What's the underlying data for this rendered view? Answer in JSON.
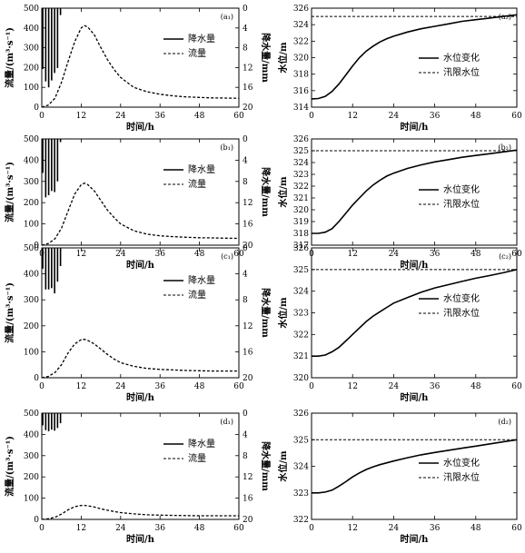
{
  "chart_data": [
    {
      "type": "line",
      "panel_label": "(a₁)",
      "xlabel": "时间/h",
      "ylabel": "流量/(m³·s⁻¹)",
      "y2label": "降水量/mm",
      "xlim": [
        0,
        60
      ],
      "ylim": [
        0,
        500
      ],
      "y2lim": [
        0,
        20
      ],
      "y2_inverted": true,
      "xticks": [
        "0",
        "12",
        "24",
        "36",
        "48",
        "60"
      ],
      "yticks": [
        "0",
        "100",
        "200",
        "300",
        "400",
        "500"
      ],
      "y2ticks": [
        "0",
        "4",
        "8",
        "12",
        "16",
        "20"
      ],
      "legend": [
        "降水量",
        "流量"
      ],
      "legend_position": "top-right",
      "rainfall": {
        "name": "降水量",
        "x": [
          0.3,
          1.2,
          2.1,
          3.0,
          3.9,
          4.8,
          5.7
        ],
        "values": [
          12.3,
          14.8,
          16.0,
          14.6,
          13.1,
          12.1,
          1.4
        ]
      },
      "series": [
        {
          "name": "流量",
          "x": [
            0,
            2,
            4,
            6,
            8,
            10,
            12,
            13,
            14,
            16,
            18,
            20,
            22,
            24,
            28,
            32,
            36,
            40,
            44,
            48,
            52,
            56,
            60
          ],
          "values": [
            0,
            10,
            45,
            125,
            230,
            330,
            400,
            412,
            405,
            365,
            300,
            240,
            190,
            150,
            100,
            78,
            65,
            57,
            52,
            49,
            47,
            46,
            45
          ]
        }
      ]
    },
    {
      "type": "line",
      "panel_label": "(a₂)",
      "xlabel": "时间/h",
      "ylabel": "水位/m",
      "xlim": [
        0,
        60
      ],
      "ylim": [
        314,
        326
      ],
      "xticks": [
        "0",
        "12",
        "24",
        "36",
        "48",
        "60"
      ],
      "yticks": [
        "314",
        "316",
        "318",
        "320",
        "322",
        "324",
        "326"
      ],
      "legend": [
        "水位变化",
        "汛限水位"
      ],
      "legend_position": "center-right",
      "flood_limit": 325,
      "series": [
        {
          "name": "水位变化",
          "x": [
            0,
            2,
            4,
            6,
            8,
            10,
            12,
            14,
            16,
            18,
            20,
            22,
            24,
            28,
            32,
            36,
            40,
            44,
            48,
            52,
            56,
            60
          ],
          "values": [
            315,
            315.05,
            315.3,
            315.9,
            316.8,
            317.9,
            319.0,
            320.0,
            320.8,
            321.4,
            321.9,
            322.3,
            322.6,
            323.1,
            323.5,
            323.8,
            324.1,
            324.4,
            324.6,
            324.8,
            325.0,
            325.2
          ]
        }
      ]
    },
    {
      "type": "line",
      "panel_label": "(b₁)",
      "xlabel": "时间/h",
      "ylabel": "流量/(m³·s⁻¹)",
      "y2label": "降水量/mm",
      "xlim": [
        0,
        60
      ],
      "ylim": [
        0,
        500
      ],
      "y2lim": [
        0,
        20
      ],
      "y2_inverted": true,
      "xticks": [
        "0",
        "12",
        "24",
        "36",
        "48",
        "60"
      ],
      "yticks": [
        "0",
        "100",
        "200",
        "300",
        "400",
        "500"
      ],
      "y2ticks": [
        "0",
        "4",
        "8",
        "12",
        "16",
        "20"
      ],
      "legend": [
        "降水量",
        "流量"
      ],
      "legend_position": "top-right",
      "rainfall": {
        "name": "降水量",
        "x": [
          0.3,
          1.2,
          2.1,
          3.0,
          3.9,
          4.8,
          5.7
        ],
        "values": [
          6.4,
          11.0,
          10.6,
          9.8,
          10.0,
          8.0,
          0.6
        ]
      },
      "series": [
        {
          "name": "流量",
          "x": [
            0,
            2,
            4,
            6,
            8,
            10,
            12,
            13,
            14,
            16,
            18,
            20,
            22,
            24,
            28,
            32,
            36,
            40,
            44,
            48,
            52,
            56,
            60
          ],
          "values": [
            0,
            8,
            30,
            80,
            160,
            240,
            285,
            292,
            285,
            255,
            210,
            165,
            130,
            100,
            68,
            52,
            44,
            40,
            37,
            35,
            34,
            33,
            32
          ]
        }
      ]
    },
    {
      "type": "line",
      "panel_label": "(b₂)",
      "xlabel": "时间/h",
      "ylabel": "水位/m",
      "xlim": [
        0,
        60
      ],
      "ylim": [
        317,
        326
      ],
      "xticks": [
        "0",
        "12",
        "24",
        "36",
        "48",
        "60"
      ],
      "yticks": [
        "317",
        "318",
        "319",
        "320",
        "321",
        "322",
        "323",
        "324",
        "325",
        "326"
      ],
      "legend": [
        "水位变化",
        "汛限水位"
      ],
      "legend_position": "bottom-right",
      "flood_limit": 325,
      "series": [
        {
          "name": "水位变化",
          "x": [
            0,
            2,
            4,
            6,
            8,
            10,
            12,
            14,
            16,
            18,
            20,
            22,
            24,
            28,
            32,
            36,
            40,
            44,
            48,
            52,
            56,
            60
          ],
          "values": [
            318,
            318,
            318.1,
            318.4,
            319.0,
            319.7,
            320.4,
            321.0,
            321.6,
            322.1,
            322.5,
            322.85,
            323.1,
            323.5,
            323.8,
            324.05,
            324.25,
            324.45,
            324.6,
            324.75,
            324.9,
            325.05
          ]
        }
      ]
    },
    {
      "type": "line",
      "panel_label": "(c₁)",
      "xlabel": "时间/h",
      "ylabel": "流量/(m³·s⁻¹)",
      "y2label": "降水量/mm",
      "xlim": [
        0,
        60
      ],
      "ylim": [
        0,
        500
      ],
      "y2lim": [
        0,
        20
      ],
      "y2_inverted": true,
      "xticks": [
        "0",
        "12",
        "24",
        "36",
        "48",
        "60"
      ],
      "yticks": [
        "0",
        "100",
        "200",
        "300",
        "400",
        "500"
      ],
      "y2ticks": [
        "0",
        "4",
        "8",
        "12",
        "16",
        "20"
      ],
      "legend": [
        "降水量",
        "流量"
      ],
      "legend_position": "center-right",
      "rainfall": {
        "name": "降水量",
        "x": [
          0.3,
          1.2,
          2.1,
          3.0,
          3.9,
          4.8,
          5.7
        ],
        "values": [
          3.2,
          6.4,
          6.4,
          6.2,
          7.0,
          5.2,
          2.8
        ]
      },
      "series": [
        {
          "name": "流量",
          "x": [
            0,
            2,
            4,
            6,
            8,
            10,
            12,
            13,
            14,
            16,
            18,
            20,
            22,
            24,
            28,
            32,
            36,
            40,
            44,
            48,
            52,
            56,
            60
          ],
          "values": [
            0,
            5,
            20,
            50,
            95,
            130,
            147,
            148,
            144,
            130,
            110,
            90,
            72,
            58,
            44,
            36,
            32,
            30,
            28,
            27,
            26,
            26,
            26
          ]
        }
      ]
    },
    {
      "type": "line",
      "panel_label": "(c₂)",
      "xlabel": "时间/h",
      "ylabel": "水位/m",
      "xlim": [
        0,
        60
      ],
      "ylim": [
        320,
        326
      ],
      "xticks": [
        "0",
        "12",
        "24",
        "36",
        "48",
        "60"
      ],
      "yticks": [
        "320",
        "321",
        "322",
        "323",
        "324",
        "325",
        "326"
      ],
      "legend": [
        "水位变化",
        "汛限水位"
      ],
      "legend_position": "bottom-right",
      "flood_limit": 325,
      "series": [
        {
          "name": "水位变化",
          "x": [
            0,
            2,
            4,
            6,
            8,
            10,
            12,
            14,
            16,
            18,
            20,
            22,
            24,
            28,
            32,
            36,
            40,
            44,
            48,
            52,
            56,
            60
          ],
          "values": [
            321,
            321,
            321.05,
            321.2,
            321.4,
            321.7,
            322.0,
            322.3,
            322.6,
            322.85,
            323.05,
            323.25,
            323.45,
            323.7,
            323.95,
            324.15,
            324.3,
            324.45,
            324.6,
            324.72,
            324.85,
            325.0
          ]
        }
      ]
    },
    {
      "type": "line",
      "panel_label": "(d₁)",
      "xlabel": "时间/h",
      "ylabel": "流量/(m³·s⁻¹)",
      "y2label": "降水量/mm",
      "xlim": [
        0,
        60
      ],
      "ylim": [
        0,
        500
      ],
      "y2lim": [
        0,
        20
      ],
      "y2_inverted": true,
      "xticks": [
        "0",
        "12",
        "24",
        "36",
        "48",
        "60"
      ],
      "yticks": [
        "0",
        "100",
        "200",
        "300",
        "400",
        "500"
      ],
      "y2ticks": [
        "0",
        "4",
        "8",
        "12",
        "16",
        "20"
      ],
      "legend": [
        "降水量",
        "流量"
      ],
      "legend_position": "top-right",
      "rainfall": {
        "name": "降水量",
        "x": [
          0.3,
          1.2,
          2.1,
          3.0,
          3.9,
          4.8,
          5.7
        ],
        "values": [
          2.3,
          3.2,
          3.4,
          3.1,
          3.3,
          2.8,
          1.9
        ]
      },
      "series": [
        {
          "name": "流量",
          "x": [
            0,
            2,
            4,
            6,
            8,
            10,
            12,
            13,
            14,
            16,
            18,
            20,
            22,
            24,
            28,
            32,
            36,
            40,
            44,
            48,
            52,
            56,
            60
          ],
          "values": [
            0,
            3,
            10,
            25,
            45,
            60,
            66,
            66,
            64,
            58,
            50,
            43,
            37,
            32,
            26,
            22,
            20,
            19,
            18,
            17,
            17,
            17,
            17
          ]
        }
      ]
    },
    {
      "type": "line",
      "panel_label": "(d₂)",
      "xlabel": "时间/h",
      "ylabel": "水位/m",
      "xlim": [
        0,
        60
      ],
      "ylim": [
        322,
        326
      ],
      "xticks": [
        "0",
        "12",
        "24",
        "36",
        "48",
        "60"
      ],
      "yticks": [
        "322",
        "323",
        "324",
        "325",
        "326"
      ],
      "legend": [
        "水位变化",
        "汛限水位"
      ],
      "legend_position": "center-right",
      "flood_limit": 325,
      "series": [
        {
          "name": "水位变化",
          "x": [
            0,
            2,
            4,
            6,
            8,
            10,
            12,
            14,
            16,
            18,
            20,
            22,
            24,
            28,
            32,
            36,
            40,
            44,
            48,
            52,
            56,
            60
          ],
          "values": [
            323,
            323,
            323.03,
            323.1,
            323.25,
            323.42,
            323.6,
            323.75,
            323.88,
            323.98,
            324.06,
            324.13,
            324.2,
            324.32,
            324.43,
            324.52,
            324.6,
            324.68,
            324.76,
            324.84,
            324.92,
            325.0
          ]
        }
      ]
    }
  ]
}
